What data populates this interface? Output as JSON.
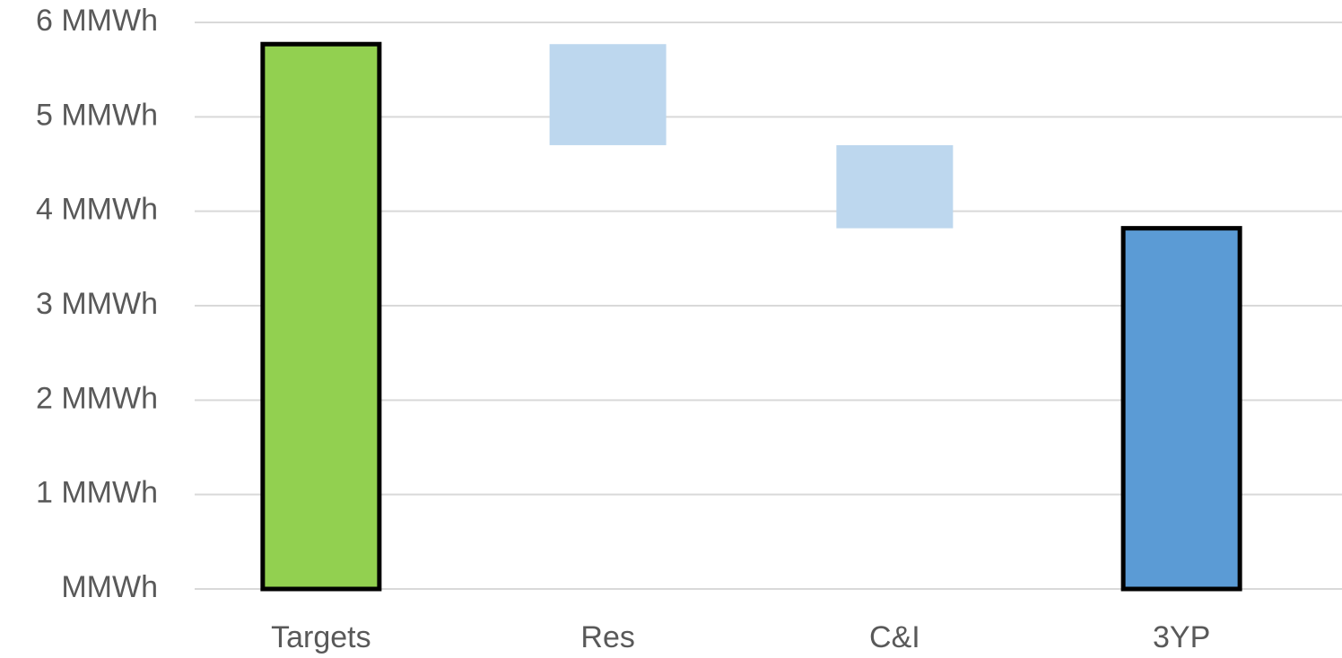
{
  "chart_data": {
    "type": "waterfall",
    "categories": [
      "Targets",
      "Res",
      "C&I",
      "3YP"
    ],
    "values": [
      5.77,
      -1.07,
      -0.88,
      3.82
    ],
    "totals": [
      true,
      false,
      false,
      true
    ],
    "colors": [
      "#92d050",
      "#bdd7ee",
      "#bdd7ee",
      "#5b9bd5"
    ],
    "ylim": [
      0,
      6
    ],
    "yticks": [
      {
        "value": 0,
        "label": "MMWh"
      },
      {
        "value": 1,
        "label": "1 MMWh"
      },
      {
        "value": 2,
        "label": "2 MMWh"
      },
      {
        "value": 3,
        "label": "3 MMWh"
      },
      {
        "value": 4,
        "label": "4 MMWh"
      },
      {
        "value": 5,
        "label": "5 MMWh"
      },
      {
        "value": 6,
        "label": "6 MMWh"
      }
    ],
    "grid": true
  }
}
